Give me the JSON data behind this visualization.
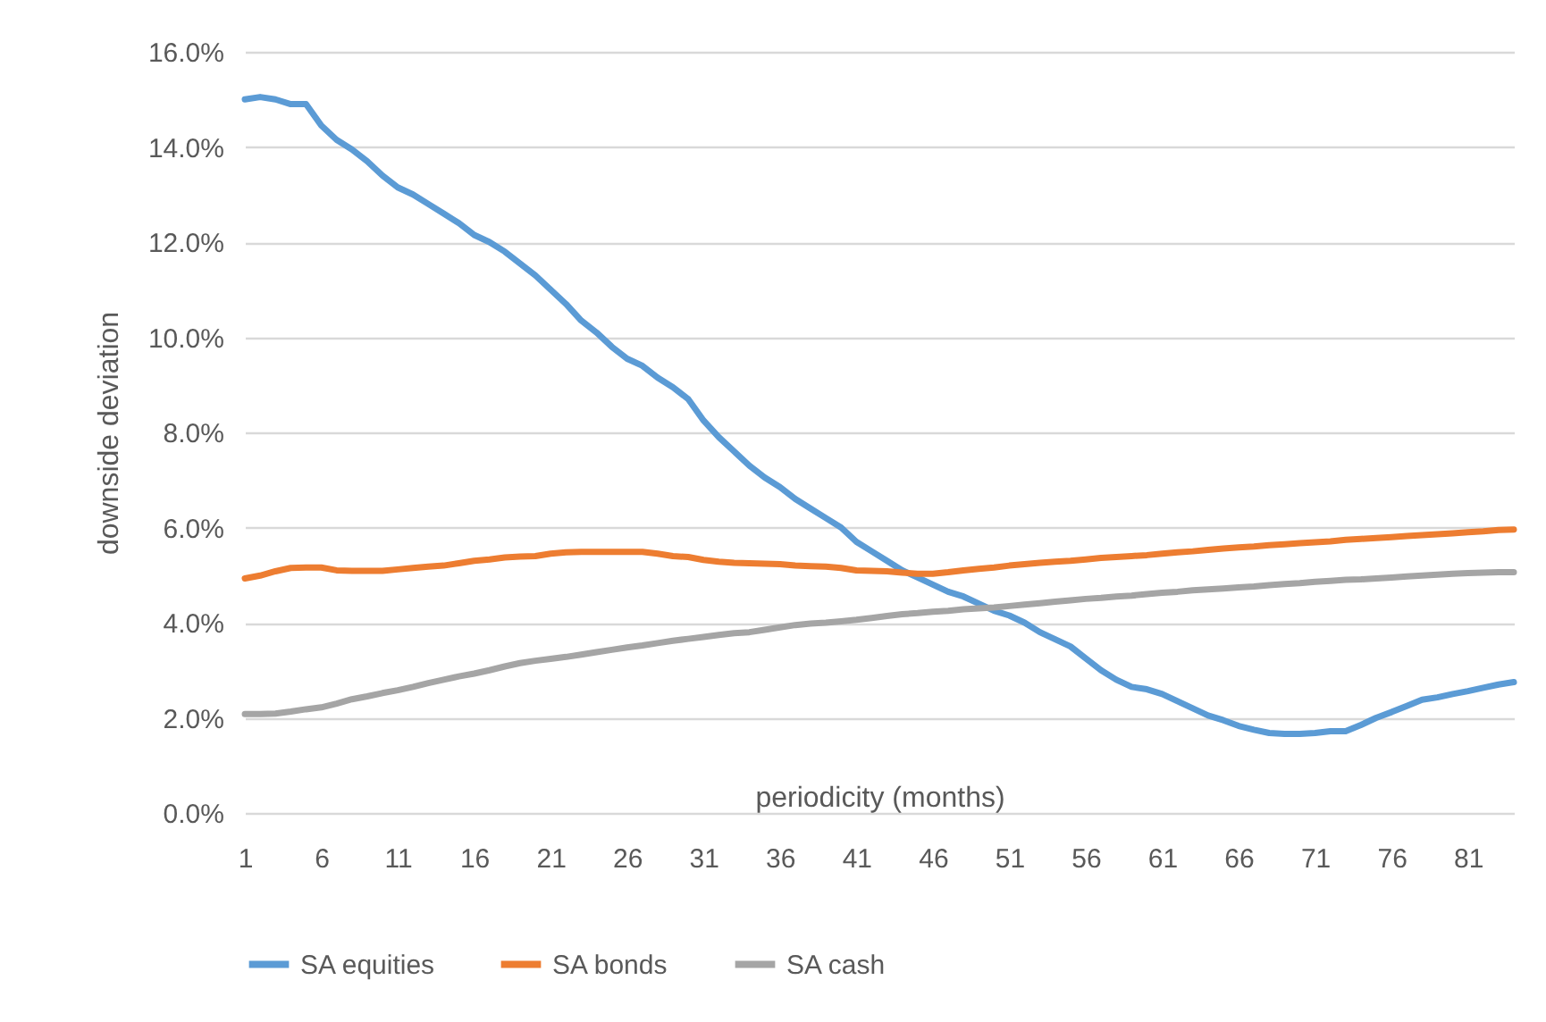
{
  "chart_data": {
    "type": "line",
    "xlabel": "periodicity (months)",
    "ylabel": "downside deviation",
    "x": [
      1,
      2,
      3,
      4,
      5,
      6,
      7,
      8,
      9,
      10,
      11,
      12,
      13,
      14,
      15,
      16,
      17,
      18,
      19,
      20,
      21,
      22,
      23,
      24,
      25,
      26,
      27,
      28,
      29,
      30,
      31,
      32,
      33,
      34,
      35,
      36,
      37,
      38,
      39,
      40,
      41,
      42,
      43,
      44,
      45,
      46,
      47,
      48,
      49,
      50,
      51,
      52,
      53,
      54,
      55,
      56,
      57,
      58,
      59,
      60,
      61,
      62,
      63,
      64,
      65,
      66,
      67,
      68,
      69,
      70,
      71,
      72,
      73,
      74,
      75,
      76,
      77,
      78,
      79,
      80,
      81,
      82,
      83,
      84
    ],
    "xlim": [
      1,
      84
    ],
    "xticks": [
      1,
      6,
      11,
      16,
      21,
      26,
      31,
      36,
      41,
      46,
      51,
      56,
      61,
      66,
      71,
      76,
      81
    ],
    "ylim": [
      0,
      16
    ],
    "yticks": [
      {
        "value": 0,
        "label": "0.0%"
      },
      {
        "value": 2,
        "label": "2.0%"
      },
      {
        "value": 4,
        "label": "4.0%"
      },
      {
        "value": 6,
        "label": "6.0%"
      },
      {
        "value": 8,
        "label": "8.0%"
      },
      {
        "value": 10,
        "label": "10.0%"
      },
      {
        "value": 12,
        "label": "12.0%"
      },
      {
        "value": 14,
        "label": "14.0%"
      },
      {
        "value": 16,
        "label": "16.0%"
      }
    ],
    "grid": "y",
    "legend": "bottom",
    "marker": "none",
    "line_style": "solid",
    "series": [
      {
        "name": "SA equities",
        "color": "#5b9bd5",
        "values": [
          15.0,
          15.05,
          15.0,
          14.9,
          14.9,
          14.45,
          14.15,
          13.95,
          13.7,
          13.4,
          13.15,
          13.0,
          12.8,
          12.6,
          12.4,
          12.15,
          12.0,
          11.8,
          11.55,
          11.3,
          11.0,
          10.7,
          10.35,
          10.1,
          9.8,
          9.55,
          9.4,
          9.15,
          8.95,
          8.7,
          8.25,
          7.9,
          7.6,
          7.3,
          7.05,
          6.85,
          6.6,
          6.4,
          6.2,
          6.0,
          5.7,
          5.5,
          5.3,
          5.1,
          4.95,
          4.8,
          4.65,
          4.55,
          4.4,
          4.25,
          4.15,
          4.0,
          3.8,
          3.65,
          3.5,
          3.25,
          3.0,
          2.8,
          2.65,
          2.6,
          2.5,
          2.35,
          2.2,
          2.05,
          1.95,
          1.83,
          1.75,
          1.68,
          1.66,
          1.66,
          1.68,
          1.72,
          1.72,
          1.85,
          2.0,
          2.12,
          2.25,
          2.38,
          2.43,
          2.5,
          2.56,
          2.63,
          2.7,
          2.75
        ]
      },
      {
        "name": "SA bonds",
        "color": "#ed7d31",
        "values": [
          4.93,
          4.99,
          5.08,
          5.15,
          5.16,
          5.16,
          5.1,
          5.09,
          5.09,
          5.09,
          5.12,
          5.15,
          5.18,
          5.2,
          5.25,
          5.3,
          5.33,
          5.37,
          5.39,
          5.4,
          5.45,
          5.48,
          5.49,
          5.49,
          5.49,
          5.49,
          5.49,
          5.45,
          5.4,
          5.38,
          5.32,
          5.28,
          5.26,
          5.25,
          5.24,
          5.23,
          5.2,
          5.19,
          5.18,
          5.15,
          5.1,
          5.09,
          5.08,
          5.05,
          5.03,
          5.03,
          5.06,
          5.1,
          5.13,
          5.16,
          5.2,
          5.23,
          5.26,
          5.28,
          5.3,
          5.33,
          5.36,
          5.38,
          5.4,
          5.42,
          5.45,
          5.48,
          5.5,
          5.53,
          5.56,
          5.58,
          5.6,
          5.63,
          5.65,
          5.67,
          5.69,
          5.71,
          5.74,
          5.76,
          5.78,
          5.8,
          5.82,
          5.84,
          5.86,
          5.88,
          5.9,
          5.92,
          5.95,
          5.96
        ]
      },
      {
        "name": "SA cash",
        "color": "#a5a5a5",
        "values": [
          2.08,
          2.08,
          2.09,
          2.13,
          2.18,
          2.22,
          2.3,
          2.39,
          2.45,
          2.52,
          2.58,
          2.65,
          2.73,
          2.8,
          2.87,
          2.93,
          3.0,
          3.08,
          3.15,
          3.2,
          3.24,
          3.28,
          3.33,
          3.38,
          3.43,
          3.48,
          3.52,
          3.57,
          3.62,
          3.66,
          3.7,
          3.74,
          3.78,
          3.8,
          3.85,
          3.9,
          3.95,
          3.98,
          4.0,
          4.03,
          4.06,
          4.1,
          4.14,
          4.18,
          4.2,
          4.23,
          4.25,
          4.28,
          4.3,
          4.32,
          4.35,
          4.38,
          4.41,
          4.44,
          4.47,
          4.5,
          4.52,
          4.55,
          4.57,
          4.6,
          4.63,
          4.65,
          4.68,
          4.7,
          4.72,
          4.74,
          4.76,
          4.79,
          4.81,
          4.83,
          4.86,
          4.88,
          4.9,
          4.91,
          4.93,
          4.95,
          4.97,
          4.99,
          5.01,
          5.03,
          5.04,
          5.05,
          5.06,
          5.06
        ]
      }
    ]
  }
}
